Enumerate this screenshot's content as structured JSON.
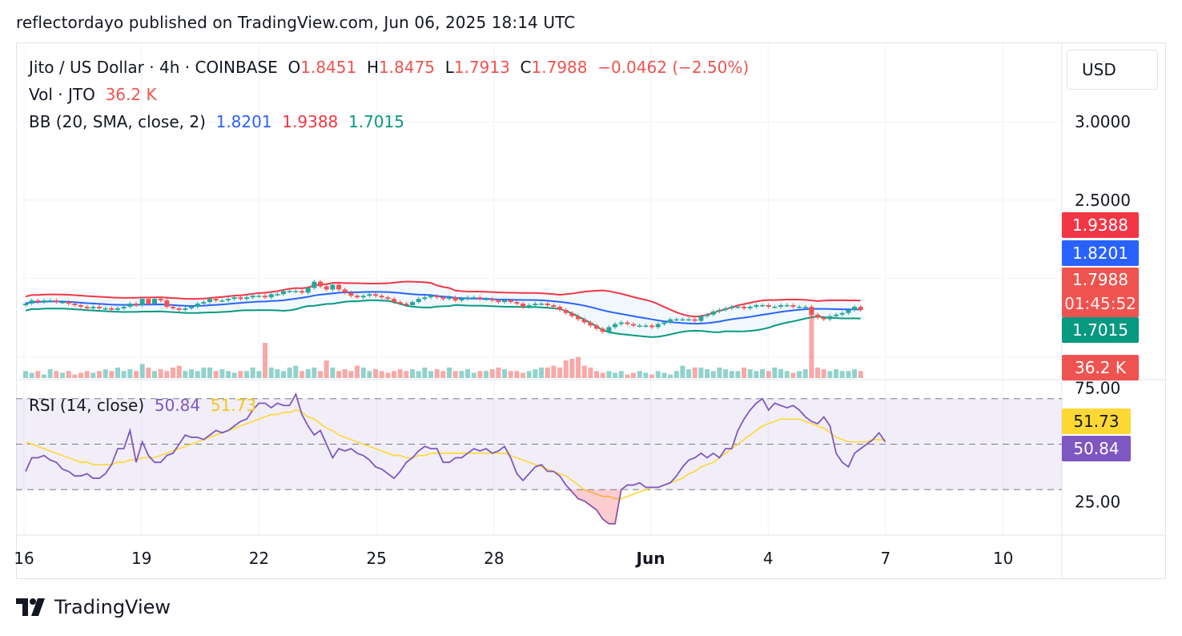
{
  "header": {
    "publisher_line": "reflectordayo published on TradingView.com, Jun 06, 2025 18:14 UTC"
  },
  "legend": {
    "symbol": "Jito / US Dollar · 4h · COINBASE",
    "o_label": "O",
    "o_value": "1.8451",
    "h_label": "H",
    "h_value": "1.8475",
    "l_label": "L",
    "l_value": "1.7913",
    "c_label": "C",
    "c_value": "1.7988",
    "change": "−0.0462 (−2.50%)",
    "vol_label": "Vol · JTO",
    "vol_value": "36.2 K",
    "bb_label": "BB (20, SMA, close, 2)",
    "bb_basis": "1.8201",
    "bb_upper": "1.9388",
    "bb_lower": "1.7015",
    "rsi_label": "RSI (14, close)",
    "rsi_value": "50.84",
    "rsi_ma": "51.73"
  },
  "currency_button": "USD",
  "badges": {
    "bb_upper": "1.9388",
    "bb_basis": "1.8201",
    "price": "1.7988",
    "countdown": "01:45:52",
    "bb_lower": "1.7015",
    "volume": "36.2 K",
    "rsi_ma": "51.73",
    "rsi": "50.84"
  },
  "brand": {
    "name": "TradingView"
  },
  "colors": {
    "up": "#26a69a",
    "down": "#ef5350",
    "bb_basis": "#2962ff",
    "bb_upper": "#f23645",
    "bb_lower": "#089981",
    "rsi": "#7e57c2",
    "rsi_ma": "#fdd835",
    "band_fill": "#2196f3"
  },
  "chart_data": [
    {
      "type": "candlestick",
      "title": "Jito / US Dollar · 4h · COINBASE",
      "y_ticks": [
        "3.0000",
        "2.5000"
      ],
      "x_ticks": [
        "16",
        "19",
        "22",
        "25",
        "28",
        "Jun",
        "4",
        "7",
        "10"
      ],
      "x_tick_days": [
        16,
        19,
        22,
        25,
        28,
        32,
        35,
        38,
        41
      ],
      "x_range_days": [
        16,
        42.5
      ],
      "last_bar_day": 37.4,
      "ylim": [
        1.36,
        3.5
      ],
      "close": [
        1.84,
        1.86,
        1.85,
        1.86,
        1.86,
        1.85,
        1.85,
        1.84,
        1.83,
        1.82,
        1.81,
        1.82,
        1.81,
        1.81,
        1.8,
        1.81,
        1.82,
        1.84,
        1.83,
        1.87,
        1.84,
        1.87,
        1.86,
        1.82,
        1.81,
        1.8,
        1.81,
        1.82,
        1.84,
        1.85,
        1.87,
        1.86,
        1.86,
        1.87,
        1.88,
        1.87,
        1.88,
        1.89,
        1.89,
        1.88,
        1.9,
        1.9,
        1.92,
        1.92,
        1.92,
        1.91,
        1.94,
        1.98,
        1.95,
        1.93,
        1.96,
        1.93,
        1.91,
        1.89,
        1.88,
        1.89,
        1.9,
        1.89,
        1.88,
        1.87,
        1.85,
        1.84,
        1.83,
        1.85,
        1.87,
        1.88,
        1.89,
        1.88,
        1.87,
        1.88,
        1.86,
        1.87,
        1.88,
        1.88,
        1.87,
        1.87,
        1.86,
        1.85,
        1.86,
        1.85,
        1.84,
        1.82,
        1.83,
        1.84,
        1.84,
        1.83,
        1.82,
        1.8,
        1.78,
        1.76,
        1.74,
        1.72,
        1.7,
        1.68,
        1.66,
        1.69,
        1.71,
        1.72,
        1.71,
        1.7,
        1.7,
        1.7,
        1.69,
        1.71,
        1.72,
        1.74,
        1.74,
        1.74,
        1.74,
        1.73,
        1.76,
        1.77,
        1.79,
        1.8,
        1.81,
        1.82,
        1.82,
        1.81,
        1.82,
        1.83,
        1.83,
        1.82,
        1.82,
        1.83,
        1.83,
        1.82,
        1.82,
        1.82,
        1.77,
        1.75,
        1.74,
        1.76,
        1.77,
        1.78,
        1.8,
        1.82,
        1.8
      ],
      "volume_relative": [
        0.2,
        0.15,
        0.2,
        0.1,
        0.25,
        0.2,
        0.15,
        0.2,
        0.1,
        0.15,
        0.2,
        0.15,
        0.2,
        0.25,
        0.2,
        0.3,
        0.2,
        0.25,
        0.2,
        0.4,
        0.3,
        0.2,
        0.25,
        0.2,
        0.3,
        0.35,
        0.2,
        0.25,
        0.2,
        0.3,
        0.3,
        0.2,
        0.25,
        0.2,
        0.15,
        0.2,
        0.2,
        0.3,
        0.2,
        1.0,
        0.3,
        0.25,
        0.2,
        0.3,
        0.35,
        0.2,
        0.25,
        0.3,
        0.2,
        0.5,
        0.3,
        0.2,
        0.25,
        0.2,
        0.35,
        0.3,
        0.2,
        0.25,
        0.2,
        0.15,
        0.2,
        0.25,
        0.2,
        0.25,
        0.2,
        0.3,
        0.2,
        0.25,
        0.2,
        0.3,
        0.2,
        0.2,
        0.25,
        0.15,
        0.2,
        0.2,
        0.25,
        0.3,
        0.25,
        0.2,
        0.2,
        0.15,
        0.2,
        0.25,
        0.3,
        0.3,
        0.35,
        0.3,
        0.5,
        0.55,
        0.6,
        0.35,
        0.3,
        0.2,
        0.15,
        0.2,
        0.15,
        0.2,
        0.1,
        0.15,
        0.2,
        0.15,
        0.1,
        0.2,
        0.15,
        0.1,
        0.2,
        0.35,
        0.25,
        0.3,
        0.3,
        0.25,
        0.2,
        0.3,
        0.25,
        0.2,
        0.2,
        0.3,
        0.25,
        0.2,
        0.25,
        0.2,
        0.3,
        0.25,
        0.2,
        0.15,
        0.2,
        0.25,
        2.0,
        0.3,
        0.25,
        0.2,
        0.25,
        0.2,
        0.2,
        0.25,
        0.2
      ]
    },
    {
      "type": "line",
      "title": "RSI (14, close)",
      "y_ticks": [
        "75.00",
        "25.00"
      ],
      "bands": [
        70,
        50,
        30
      ],
      "ylim": [
        10,
        78
      ],
      "series": [
        {
          "name": "RSI",
          "values": [
            38,
            44,
            44,
            45,
            43,
            42,
            39,
            38,
            36,
            36,
            37,
            35,
            35,
            37,
            41,
            48,
            48,
            56,
            42,
            51,
            45,
            42,
            42,
            45,
            46,
            50,
            54,
            53,
            53,
            52,
            54,
            56,
            55,
            56,
            58,
            60,
            61,
            65,
            68,
            68,
            66,
            68,
            67,
            67,
            72,
            63,
            58,
            54,
            56,
            50,
            44,
            48,
            47,
            48,
            46,
            45,
            43,
            40,
            39,
            37,
            35,
            38,
            42,
            44,
            47,
            49,
            48,
            48,
            42,
            42,
            44,
            44,
            46,
            48,
            47,
            48,
            46,
            47,
            49,
            44,
            37,
            34,
            37,
            40,
            41,
            38,
            38,
            36,
            32,
            29,
            26,
            25,
            23,
            21,
            17,
            15,
            15,
            30,
            32,
            32,
            33,
            31,
            31,
            31,
            32,
            33,
            36,
            40,
            43,
            44,
            46,
            44,
            46,
            44,
            48,
            48,
            56,
            61,
            65,
            68,
            70,
            65,
            68,
            67,
            66,
            67,
            65,
            62,
            60,
            59,
            62,
            58,
            46,
            42,
            40,
            46,
            48,
            50,
            52,
            55,
            51
          ]
        },
        {
          "name": "RSI-based MA",
          "values": [
            51,
            50,
            49,
            48,
            47,
            46,
            45,
            44,
            43,
            42,
            42,
            41,
            41,
            41,
            41,
            42,
            42,
            43,
            43,
            44,
            44,
            44,
            45,
            46,
            47,
            48,
            49,
            50,
            51,
            52,
            53,
            54,
            55,
            56,
            57,
            58,
            59,
            60,
            61,
            62,
            63,
            63,
            64,
            64,
            65,
            64,
            62,
            61,
            59,
            57,
            56,
            54,
            53,
            52,
            51,
            50,
            49,
            48,
            47,
            46,
            45,
            45,
            44,
            44,
            45,
            45,
            46,
            46,
            46,
            46,
            46,
            46,
            46,
            46,
            46,
            46,
            46,
            46,
            46,
            45,
            44,
            43,
            42,
            41,
            40,
            39,
            38,
            37,
            36,
            34,
            32,
            30,
            29,
            28,
            27,
            27,
            26,
            26,
            27,
            28,
            29,
            30,
            31,
            31,
            32,
            33,
            34,
            35,
            37,
            38,
            40,
            41,
            42,
            44,
            46,
            48,
            50,
            52,
            54,
            56,
            58,
            59,
            60,
            61,
            61,
            61,
            61,
            60,
            59,
            58,
            57,
            55,
            53,
            52,
            51,
            51,
            51,
            51,
            52,
            52,
            51.73
          ]
        }
      ]
    }
  ]
}
